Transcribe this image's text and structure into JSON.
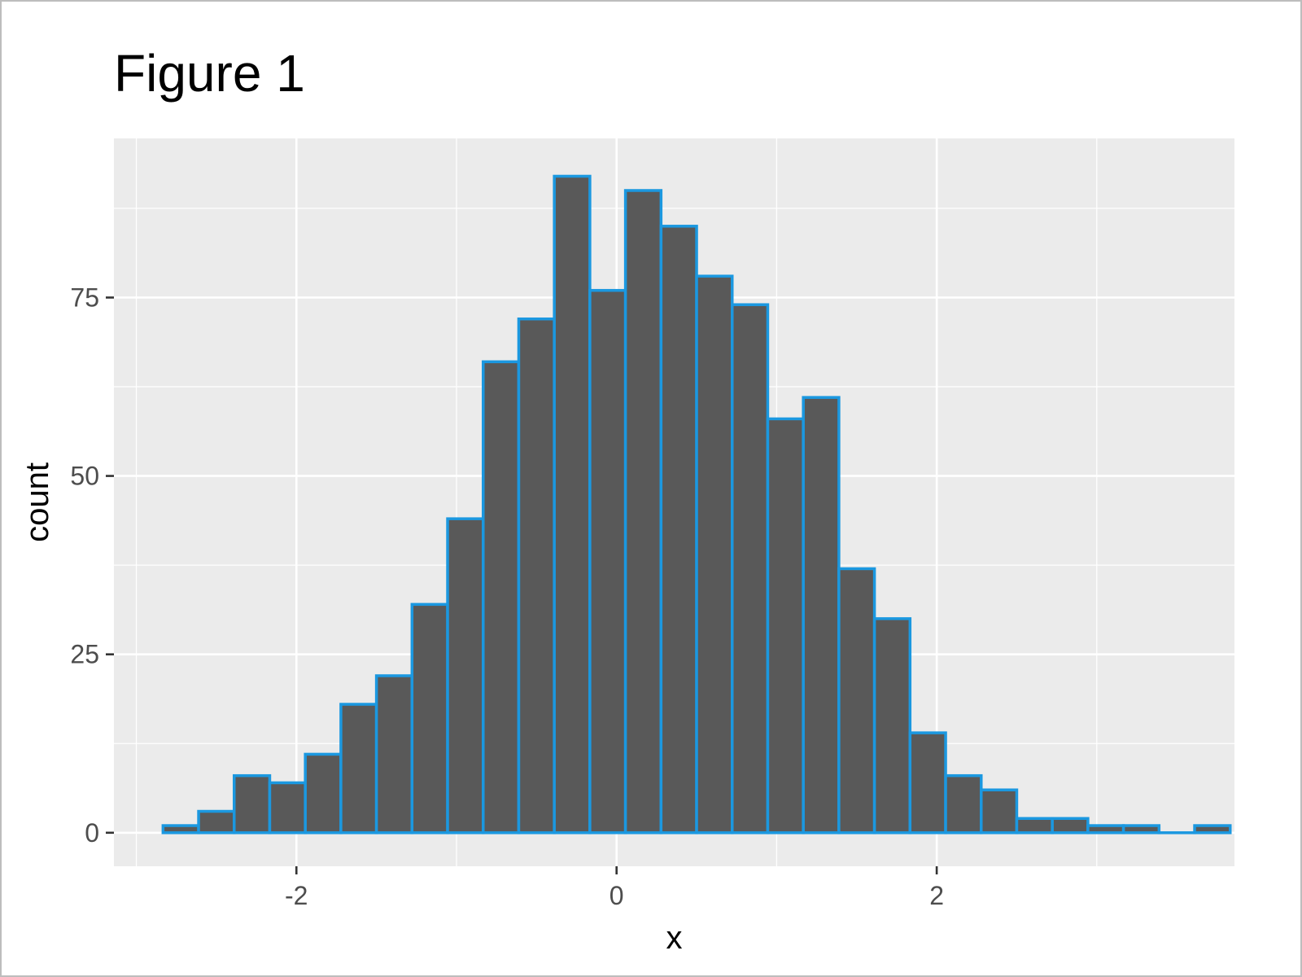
{
  "chart_data": {
    "type": "bar",
    "title": "Figure 1",
    "xlabel": "x",
    "ylabel": "count",
    "xlim": [
      -3.14,
      3.86
    ],
    "ylim": [
      -4.7,
      97.3
    ],
    "x_ticks": [
      -2,
      0,
      2
    ],
    "x_tick_labels": [
      "-2",
      "0",
      "2"
    ],
    "y_ticks": [
      0,
      25,
      50,
      75
    ],
    "y_tick_labels": [
      "0",
      "25",
      "50",
      "75"
    ],
    "bin_width": 0.2222,
    "bins": [
      {
        "x0": -2.8333,
        "x1": -2.6111,
        "count": 1
      },
      {
        "x0": -2.6111,
        "x1": -2.3889,
        "count": 3
      },
      {
        "x0": -2.3889,
        "x1": -2.1667,
        "count": 8
      },
      {
        "x0": -2.1667,
        "x1": -1.9444,
        "count": 7
      },
      {
        "x0": -1.9444,
        "x1": -1.7222,
        "count": 11
      },
      {
        "x0": -1.7222,
        "x1": -1.5,
        "count": 18
      },
      {
        "x0": -1.5,
        "x1": -1.2778,
        "count": 22
      },
      {
        "x0": -1.2778,
        "x1": -1.0556,
        "count": 32
      },
      {
        "x0": -1.0556,
        "x1": -0.8333,
        "count": 44
      },
      {
        "x0": -0.8333,
        "x1": -0.6111,
        "count": 66
      },
      {
        "x0": -0.6111,
        "x1": -0.3889,
        "count": 72
      },
      {
        "x0": -0.3889,
        "x1": -0.1667,
        "count": 92
      },
      {
        "x0": -0.1667,
        "x1": 0.0556,
        "count": 76
      },
      {
        "x0": 0.0556,
        "x1": 0.2778,
        "count": 90
      },
      {
        "x0": 0.2778,
        "x1": 0.5,
        "count": 85
      },
      {
        "x0": 0.5,
        "x1": 0.7222,
        "count": 78
      },
      {
        "x0": 0.7222,
        "x1": 0.9444,
        "count": 74
      },
      {
        "x0": 0.9444,
        "x1": 1.1667,
        "count": 58
      },
      {
        "x0": 1.1667,
        "x1": 1.3889,
        "count": 61
      },
      {
        "x0": 1.3889,
        "x1": 1.6111,
        "count": 37
      },
      {
        "x0": 1.6111,
        "x1": 1.8333,
        "count": 30
      },
      {
        "x0": 1.8333,
        "x1": 2.0556,
        "count": 14
      },
      {
        "x0": 2.0556,
        "x1": 2.2778,
        "count": 8
      },
      {
        "x0": 2.2778,
        "x1": 2.5,
        "count": 6
      },
      {
        "x0": 2.5,
        "x1": 2.7222,
        "count": 2
      },
      {
        "x0": 2.7222,
        "x1": 2.9444,
        "count": 2
      },
      {
        "x0": 2.9444,
        "x1": 3.1667,
        "count": 1
      },
      {
        "x0": 3.1667,
        "x1": 3.3889,
        "count": 1
      },
      {
        "x0": 3.3889,
        "x1": 3.6111,
        "count": 0
      },
      {
        "x0": 3.6111,
        "x1": 3.8333,
        "count": 1
      }
    ],
    "grid": true,
    "colors": {
      "panel": "#ebebeb",
      "grid": "#ffffff",
      "bar_fill": "#595959",
      "bar_outline": "#1b98e0",
      "tick": "#333333"
    }
  }
}
